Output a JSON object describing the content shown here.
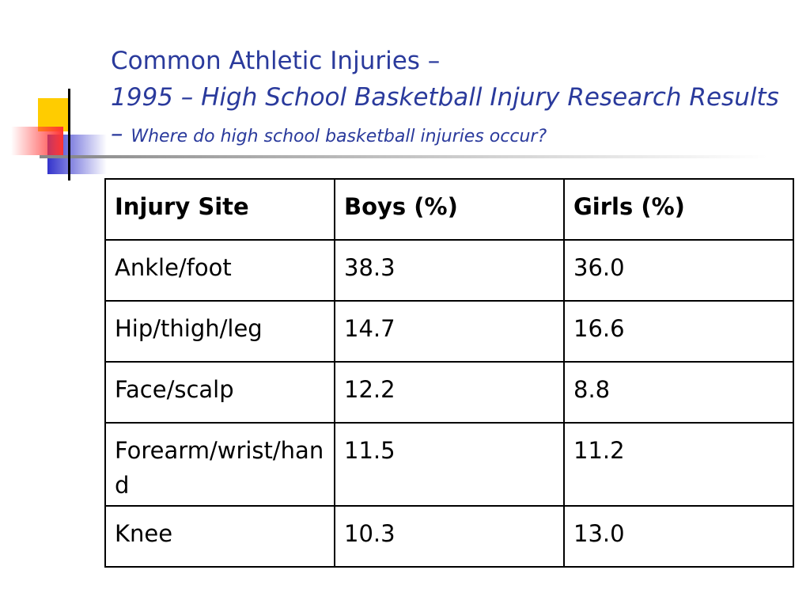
{
  "header": {
    "title": "Common Athletic Injuries –",
    "subtitle": "1995 – High School Basketball Injury Research Results –",
    "question": "Where do high school basketball injuries occur?"
  },
  "table": {
    "columns": [
      "Injury Site",
      "Boys (%)",
      "Girls (%)"
    ],
    "rows": [
      [
        "Ankle/foot",
        "38.3",
        "36.0"
      ],
      [
        "Hip/thigh/leg",
        "14.7",
        "16.6"
      ],
      [
        "Face/scalp",
        "12.2",
        "8.8"
      ],
      [
        "Forearm/wrist/hand",
        "11.5",
        "11.2"
      ],
      [
        "Knee",
        "10.3",
        "13.0"
      ]
    ]
  }
}
